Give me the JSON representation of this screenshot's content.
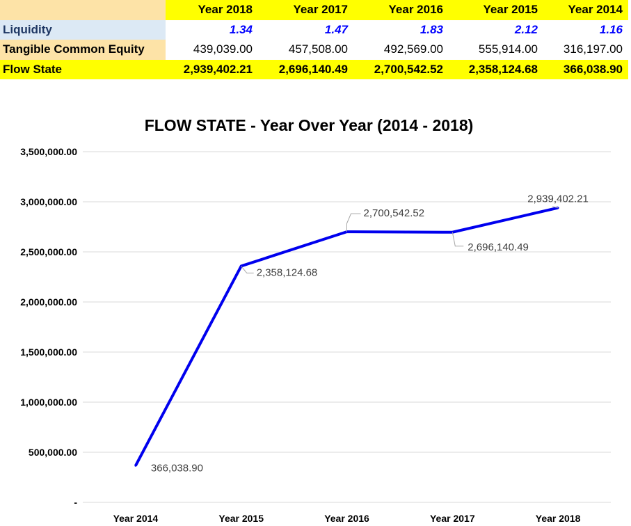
{
  "table": {
    "header": [
      "Year 2018",
      "Year 2017",
      "Year 2016",
      "Year 2015",
      "Year 2014"
    ],
    "rows": [
      {
        "label": "Liquidity",
        "values": [
          "1.34",
          "1.47",
          "1.83",
          "2.12",
          "1.16"
        ]
      },
      {
        "label": "Tangible Common Equity",
        "values": [
          "439,039.00",
          "457,508.00",
          "492,569.00",
          "555,914.00",
          "316,197.00"
        ]
      },
      {
        "label": "Flow State",
        "values": [
          "2,939,402.21",
          "2,696,140.49",
          "2,700,542.52",
          "2,358,124.68",
          "366,038.90"
        ]
      }
    ]
  },
  "colors": {
    "header_fill": "#ffff00",
    "corner_fill": "#fde3a7",
    "liquidity_label_fill": "#dce9f5",
    "liquidity_value_text": "#0000ff",
    "line": "#0000ee",
    "grid": "#d9d9d9"
  },
  "chart_data": {
    "type": "line",
    "title": "FLOW STATE - Year Over Year (2014 - 2018)",
    "categories": [
      "Year 2014",
      "Year 2015",
      "Year 2016",
      "Year 2017",
      "Year 2018"
    ],
    "values": [
      366038.9,
      2358124.68,
      2700542.52,
      2696140.49,
      2939402.21
    ],
    "data_labels": [
      "366,038.90",
      "2,358,124.68",
      "2,700,542.52",
      "2,696,140.49",
      "2,939,402.21"
    ],
    "ylim": [
      0,
      3500000
    ],
    "ytick_values": [
      0,
      500000,
      1000000,
      1500000,
      2000000,
      2500000,
      3000000,
      3500000
    ],
    "ytick_labels": [
      "-",
      "500,000.00",
      "1,000,000.00",
      "1,500,000.00",
      "2,000,000.00",
      "2,500,000.00",
      "3,000,000.00",
      "3,500,000.00"
    ],
    "xlabel": "",
    "ylabel": "",
    "grid": true,
    "legend": "none"
  }
}
